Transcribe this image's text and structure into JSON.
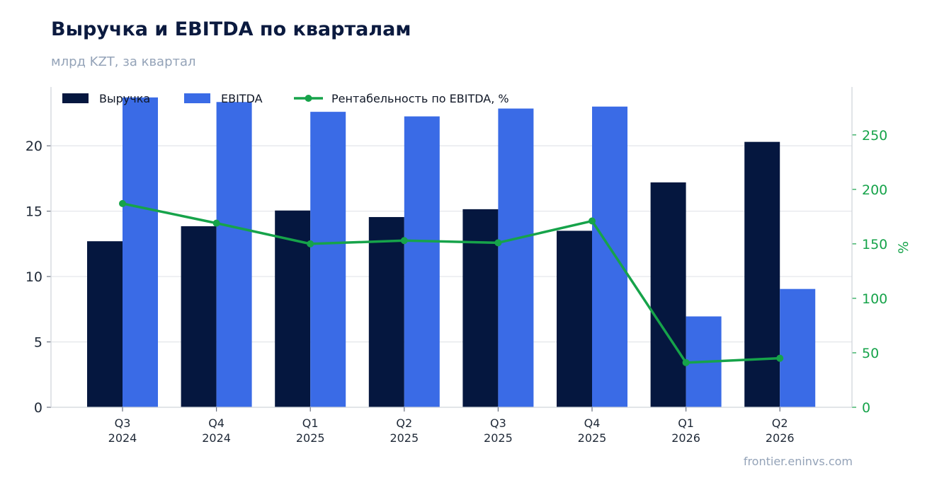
{
  "header": {
    "title": "Выручка и EBITDA по кварталам",
    "subtitle": "млрд KZT, за квартал"
  },
  "footer": {
    "source": "frontier.eninvs.com"
  },
  "colors": {
    "revenue": "#05173f",
    "ebitda": "#3a6be6",
    "margin": "#16a34a",
    "grid": "#e5e7eb",
    "axis": "#d1d5db"
  },
  "chart_data": {
    "type": "bar",
    "categories": [
      [
        "Q3",
        "2024"
      ],
      [
        "Q4",
        "2024"
      ],
      [
        "Q1",
        "2025"
      ],
      [
        "Q2",
        "2025"
      ],
      [
        "Q3",
        "2025"
      ],
      [
        "Q4",
        "2025"
      ],
      [
        "Q1",
        "2026"
      ],
      [
        "Q2",
        "2026"
      ]
    ],
    "series": [
      {
        "name": "Выручка",
        "type": "bar",
        "axis": "left",
        "values": [
          12.7,
          13.85,
          15.05,
          14.55,
          15.15,
          13.5,
          17.2,
          20.3
        ]
      },
      {
        "name": "EBITDA",
        "type": "bar",
        "axis": "left",
        "values": [
          23.7,
          23.35,
          22.6,
          22.25,
          22.85,
          23.0,
          6.95,
          9.05
        ]
      },
      {
        "name": "Рентабельность по EBITDA, %",
        "type": "line",
        "axis": "right",
        "values": [
          187,
          169,
          150,
          153,
          151,
          171,
          41,
          45
        ]
      }
    ],
    "y_left": {
      "ticks": [
        0,
        5,
        10,
        15,
        20
      ],
      "lim": [
        0,
        24.5
      ]
    },
    "y_right": {
      "ticks": [
        0,
        50,
        100,
        150,
        200,
        250
      ],
      "lim": [
        0,
        294
      ],
      "label": "%"
    },
    "legend": "top-left",
    "grid": true
  }
}
